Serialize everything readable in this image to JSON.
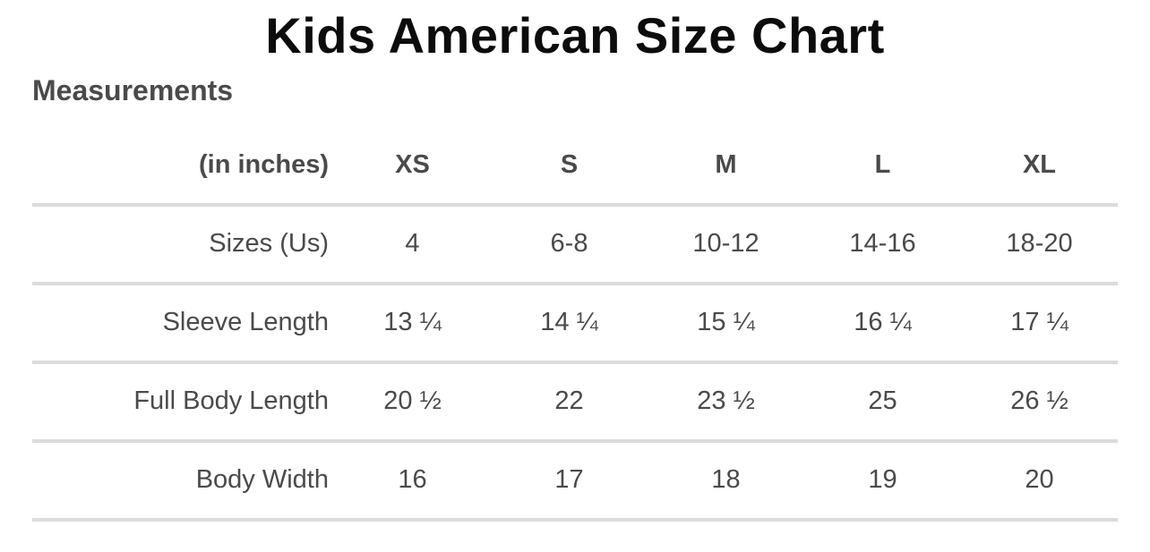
{
  "page": {
    "title": "Kids American Size Chart",
    "section_heading": "Measurements"
  },
  "chart_data": {
    "type": "table",
    "title": "Kids American Size Chart",
    "subtitle": "Measurements",
    "units": "inches",
    "columns": [
      "(in inches)",
      "XS",
      "S",
      "M",
      "L",
      "XL"
    ],
    "rows": [
      {
        "label": "Sizes (Us)",
        "values": [
          "4",
          "6-8",
          "10-12",
          "14-16",
          "18-20"
        ]
      },
      {
        "label": "Sleeve Length",
        "values": [
          "13 ¼",
          "14 ¼",
          "15 ¼",
          "16 ¼",
          "17 ¼"
        ]
      },
      {
        "label": "Full Body Length",
        "values": [
          "20 ½",
          "22",
          "23 ½",
          "25",
          "26 ½"
        ]
      },
      {
        "label": "Body Width",
        "values": [
          "16",
          "17",
          "18",
          "19",
          "20"
        ]
      }
    ]
  },
  "colors": {
    "title_text": "#0c0c0c",
    "body_text": "#4a4a4a",
    "divider": "#dcdcdc",
    "background": "#ffffff"
  }
}
